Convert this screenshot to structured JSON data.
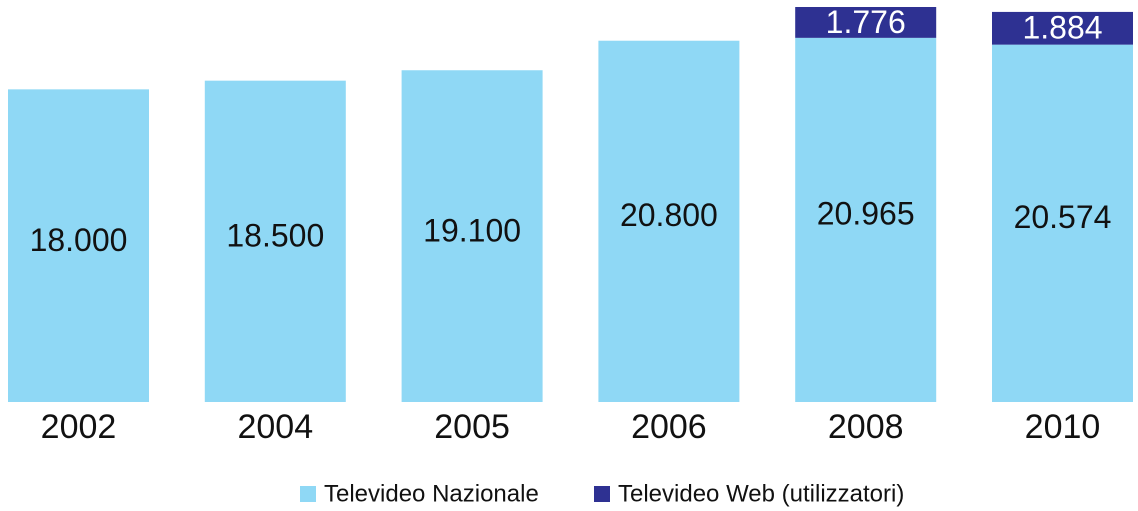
{
  "chart_data": {
    "type": "stacked_bar",
    "categories": [
      "2002",
      "2004",
      "2005",
      "2006",
      "2008",
      "2010"
    ],
    "series": [
      {
        "name": "Televideo Nazionale",
        "color": "#8fd8f5",
        "values": [
          18000,
          18500,
          19100,
          20800,
          20965,
          20574
        ],
        "value_labels": [
          "18.000",
          "18.500",
          "19.100",
          "20.800",
          "20.965",
          "20.574"
        ]
      },
      {
        "name": "Televideo Web (utilizzatori)",
        "color": "#2e3192",
        "values": [
          null,
          null,
          null,
          null,
          1776,
          1884
        ],
        "value_labels": [
          null,
          null,
          null,
          null,
          "1.776",
          "1.884"
        ]
      }
    ],
    "legend": "bottom"
  }
}
